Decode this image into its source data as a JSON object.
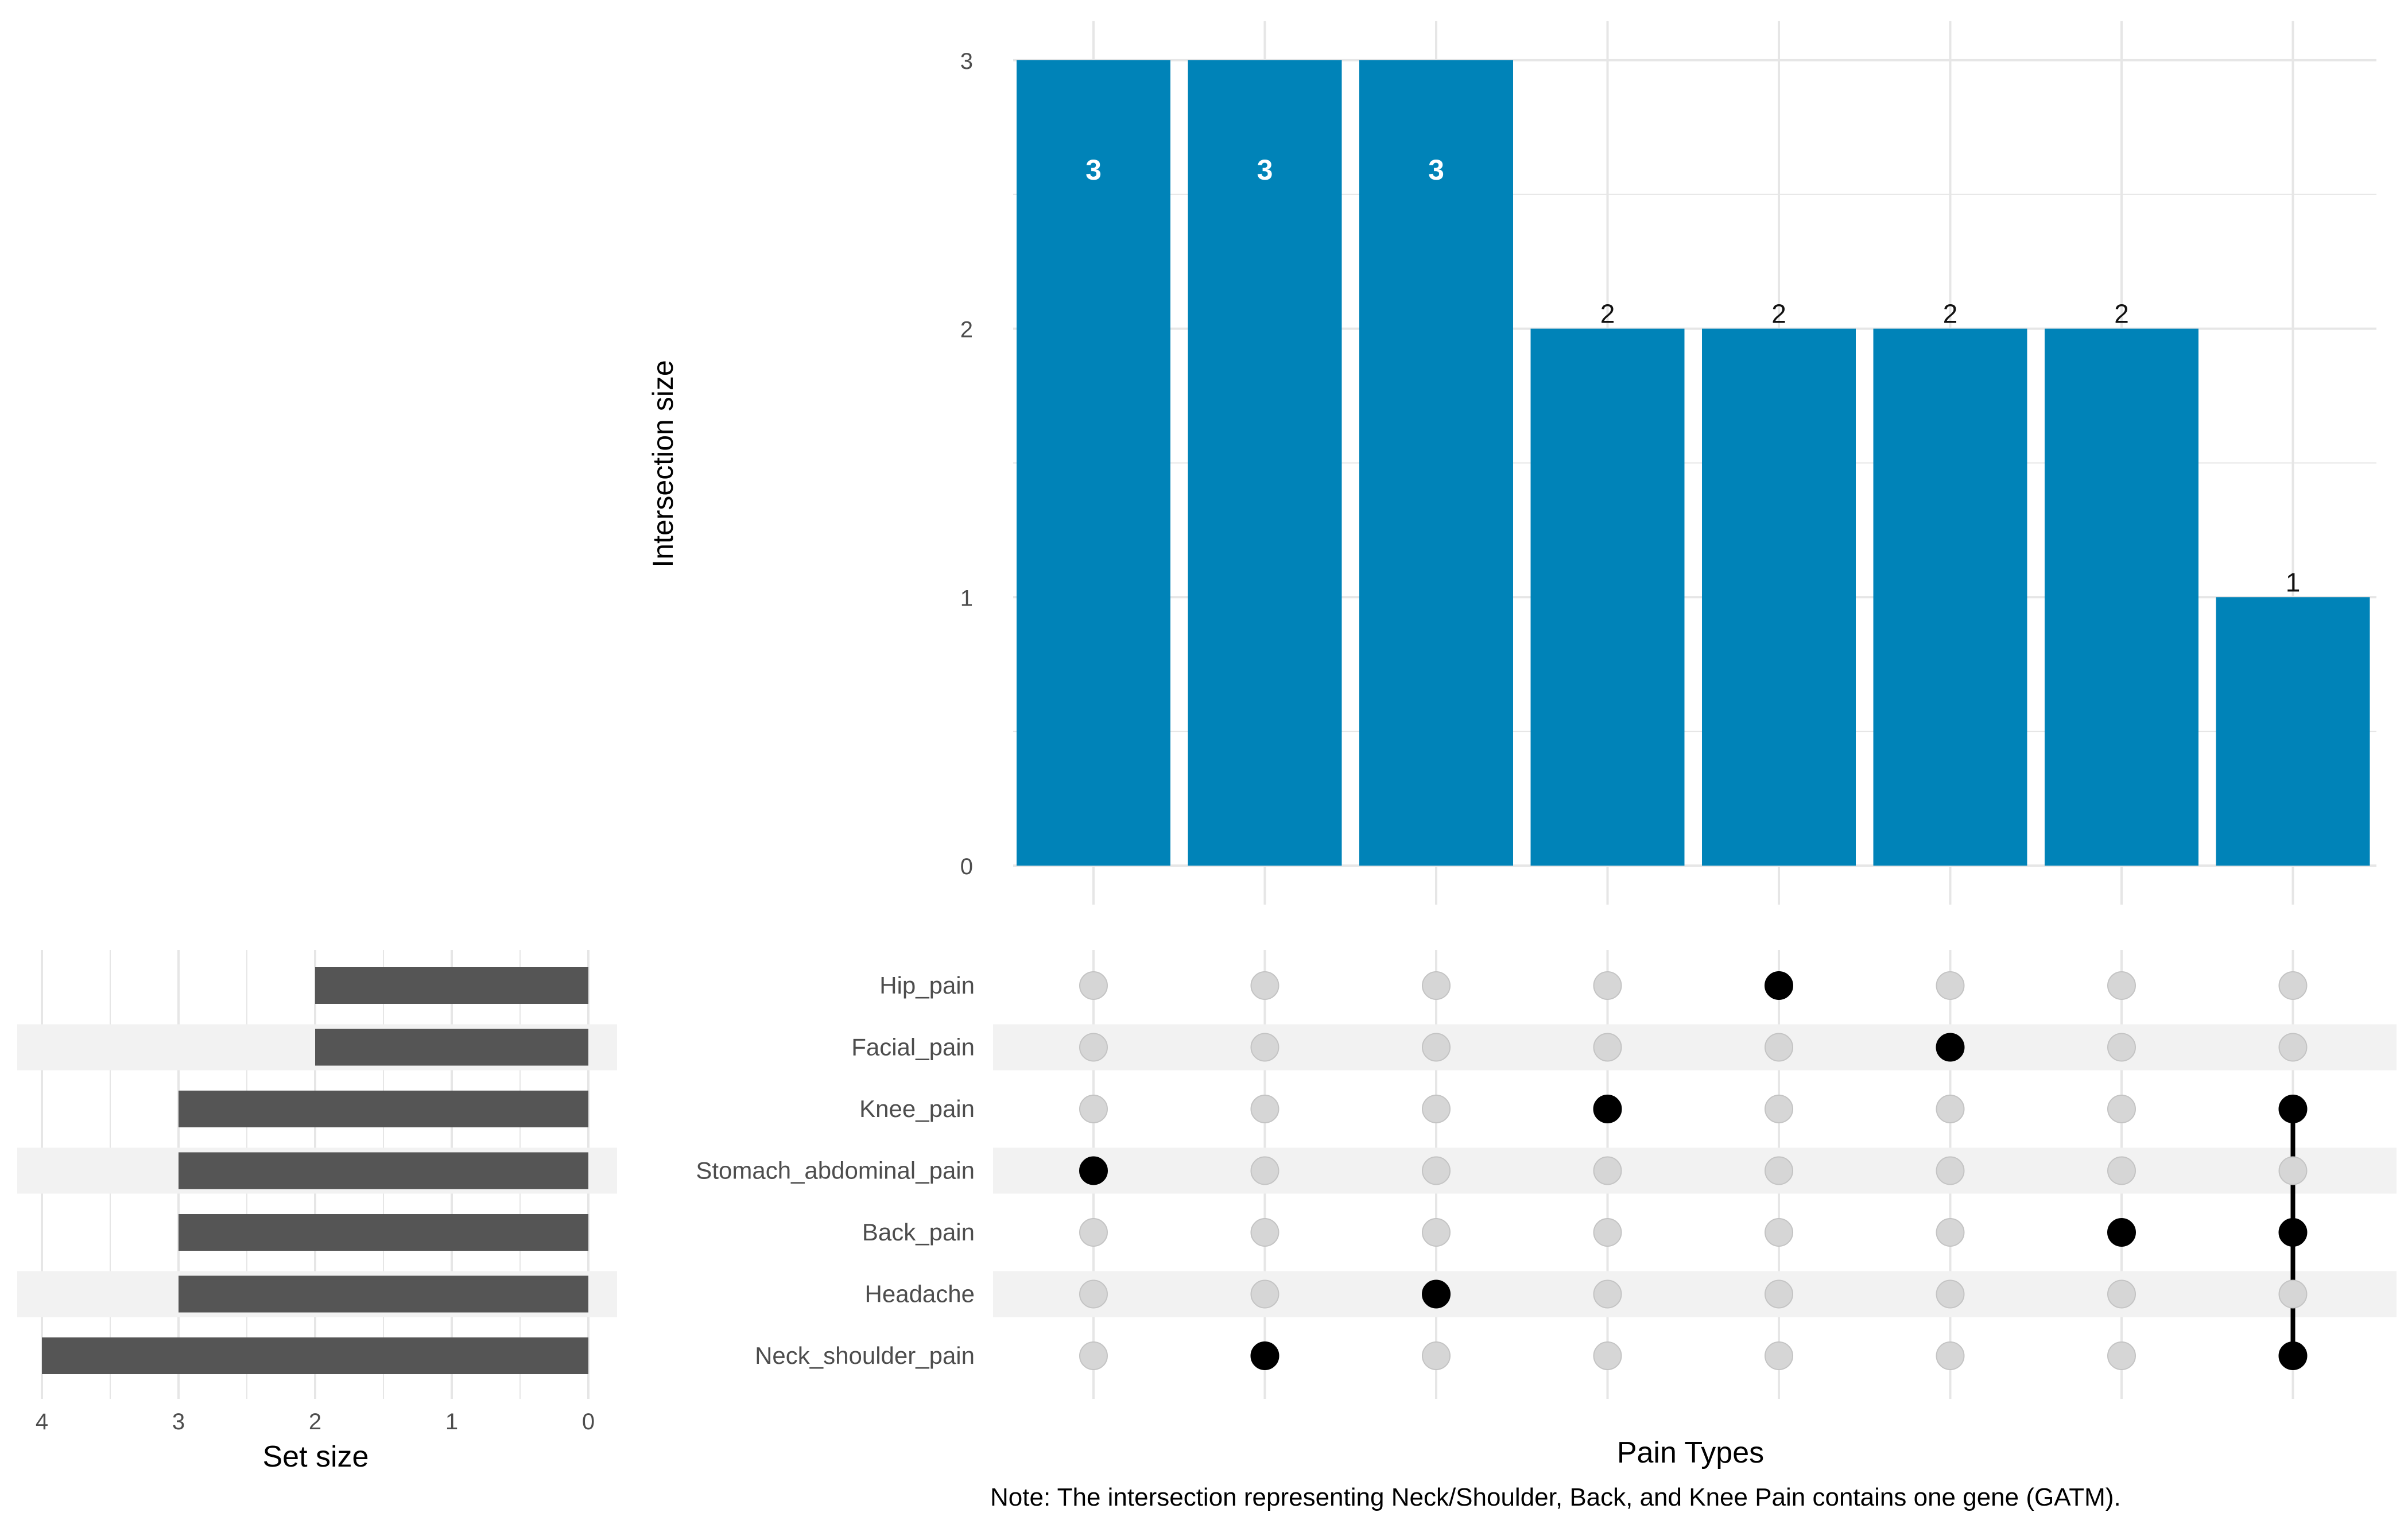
{
  "chart_data": {
    "type": "upset",
    "intersection_chart": {
      "type": "bar",
      "ylabel": "Intersection size",
      "ylim": [
        0,
        3
      ],
      "yticks": [
        "0",
        "1",
        "2",
        "3"
      ],
      "values": [
        3,
        3,
        3,
        2,
        2,
        2,
        2,
        1
      ],
      "labels": [
        "3",
        "3",
        "3",
        "2",
        "2",
        "2",
        "2",
        "1"
      ],
      "inside_label_count": 3,
      "bar_color": "#0083B8"
    },
    "sets": [
      "Hip_pain",
      "Facial_pain",
      "Knee_pain",
      "Stomach_abdominal_pain",
      "Back_pain",
      "Headache",
      "Neck_shoulder_pain"
    ],
    "set_size_chart": {
      "type": "bar",
      "orientation": "horizontal-reversed",
      "values": [
        2,
        2,
        3,
        3,
        3,
        3,
        4
      ],
      "xlabel": "Set size",
      "xlim": [
        0,
        4
      ],
      "xticks": [
        "4",
        "3",
        "2",
        "1",
        "0"
      ],
      "bar_color": "#555555"
    },
    "matrix": {
      "xlabel": "Pain Types",
      "memberships": [
        [
          "Stomach_abdominal_pain"
        ],
        [
          "Neck_shoulder_pain"
        ],
        [
          "Headache"
        ],
        [
          "Knee_pain"
        ],
        [
          "Hip_pain"
        ],
        [
          "Facial_pain"
        ],
        [
          "Back_pain"
        ],
        [
          "Knee_pain",
          "Back_pain",
          "Neck_shoulder_pain"
        ]
      ],
      "active_color": "#000000",
      "inactive_color": "#d6d6d6"
    },
    "note": "Note: The intersection representing Neck/Shoulder, Back, and Knee Pain contains one gene (GATM)."
  }
}
